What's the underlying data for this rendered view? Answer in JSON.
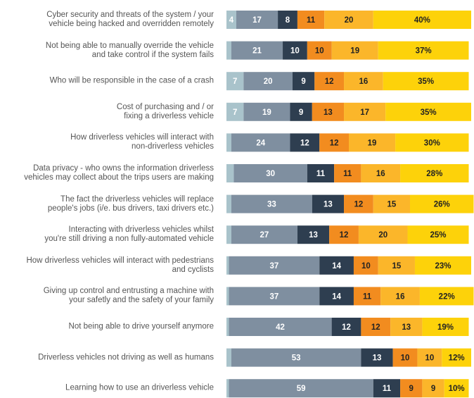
{
  "chart_data": {
    "type": "stacked-bar-horizontal",
    "categories": [
      "Cyber security and threats of the system / your\nvehicle being hacked and overridden remotely",
      "Not being able to manually override the vehicle\nand take control if the system fails",
      "Who will be responsible in the case of a crash",
      "Cost of purchasing and / or\nfixing a driverless vehicle",
      "How driverless vehicles will interact with\nnon-driverless vehicles",
      "Data privacy - who owns the information driverless\nvehicles may collect about the trips users are making",
      "The fact the driverless vehicles will replace\npeople's jobs (i/e. bus drivers, taxi drivers etc.)",
      "Interacting with driverless vehicles whilst\nyou're still driving a non fully-automated vehicle",
      "How driverless vehicles will interact with pedestrians\nand cyclists",
      "Giving up control and entrusting a machine with\nyour safetly and the safety of your family",
      "Not being able to drive yourself anymore",
      "Driverless vehicles not driving as well as humans",
      "Learning how to use an driverless vehicle"
    ],
    "xlim": [
      0,
      100
    ],
    "series": [
      {
        "color": "#a9c3cb",
        "label_color": "#ffffff",
        "values": [
          4,
          2,
          7,
          7,
          2,
          3,
          2,
          2,
          1,
          1,
          1,
          2,
          1
        ]
      },
      {
        "color": "#7f8fa0",
        "label_color": "#ffffff",
        "values": [
          17,
          21,
          20,
          19,
          24,
          30,
          33,
          27,
          37,
          37,
          42,
          53,
          59
        ]
      },
      {
        "color": "#2e3e50",
        "label_color": "#ffffff",
        "values": [
          8,
          10,
          9,
          9,
          12,
          11,
          13,
          13,
          14,
          14,
          12,
          13,
          11
        ]
      },
      {
        "color": "#f28c1f",
        "label_color": "#222222",
        "values": [
          11,
          10,
          12,
          13,
          12,
          11,
          12,
          12,
          10,
          11,
          12,
          10,
          9
        ]
      },
      {
        "color": "#fbb62a",
        "label_color": "#222222",
        "values": [
          20,
          19,
          16,
          17,
          19,
          16,
          15,
          20,
          15,
          16,
          13,
          10,
          9
        ]
      },
      {
        "color": "#fdd20a",
        "label_color": "#222222",
        "values": [
          40,
          37,
          35,
          35,
          30,
          28,
          26,
          25,
          23,
          22,
          19,
          12,
          10
        ],
        "value_labels": [
          "40%",
          "37%",
          "35%",
          "35%",
          "30%",
          "28%",
          "26%",
          "25%",
          "23%",
          "22%",
          "19%",
          "12%",
          "10%"
        ]
      }
    ]
  }
}
